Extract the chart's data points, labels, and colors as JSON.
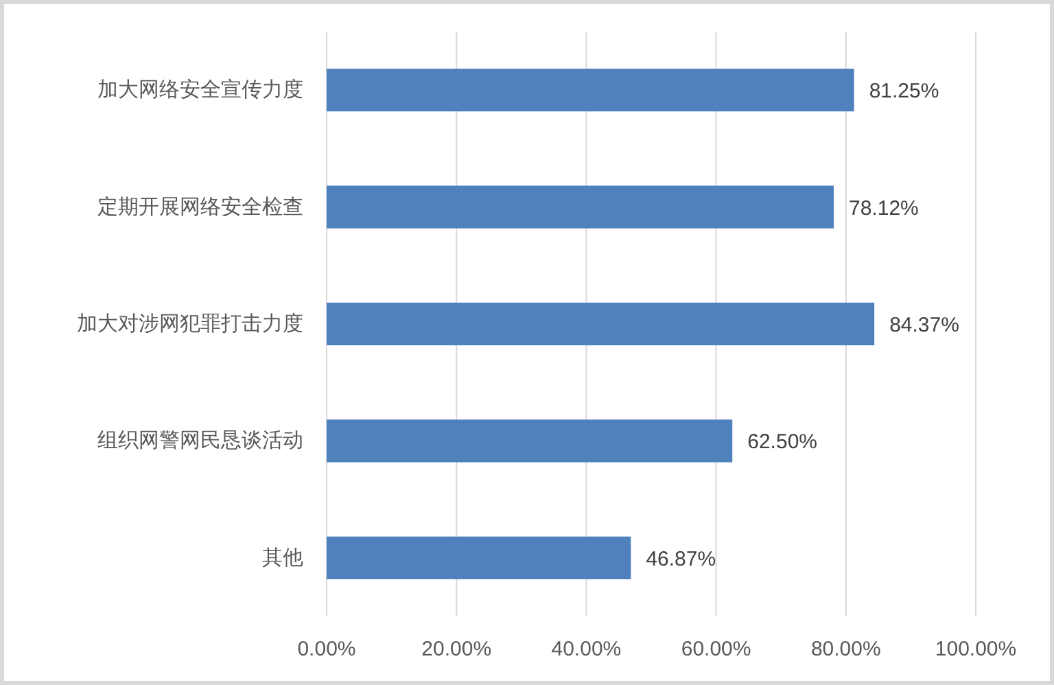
{
  "chart_data": {
    "type": "bar",
    "orientation": "horizontal",
    "categories": [
      "加大网络安全宣传力度",
      "定期开展网络安全检查",
      "加大对涉网犯罪打击力度",
      "组织网警网民恳谈活动",
      "其他"
    ],
    "values": [
      81.25,
      78.12,
      84.37,
      62.5,
      46.87
    ],
    "color": "#4f81bd",
    "value_labels": [
      "81.25%",
      "78.12%",
      "84.37%",
      "62.50%",
      "46.87%"
    ],
    "xlim": [
      0,
      100
    ],
    "xticks": [
      {
        "value": 0,
        "label": "0.00%"
      },
      {
        "value": 20,
        "label": "20.00%"
      },
      {
        "value": 40,
        "label": "40.00%"
      },
      {
        "value": 60,
        "label": "60.00%"
      },
      {
        "value": 80,
        "label": "80.00%"
      },
      {
        "value": 100,
        "label": "100.00%"
      }
    ],
    "grid": "x"
  }
}
